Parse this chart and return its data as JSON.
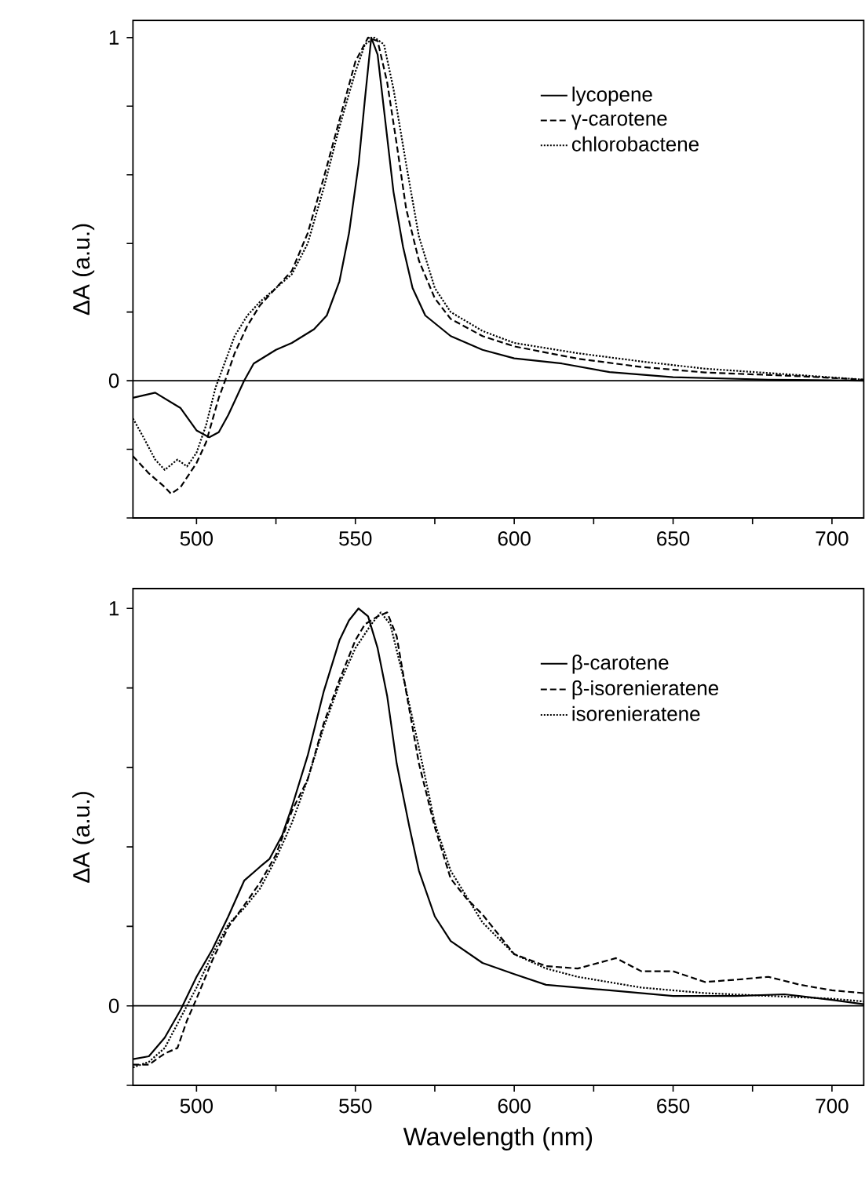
{
  "chart_data": [
    {
      "type": "line",
      "ylabel": "ΔA (a.u.)",
      "xlim": [
        480,
        710
      ],
      "ylim": [
        -0.4,
        1.05
      ],
      "xticks": [
        500,
        {
          "value": 525,
          "label": null
        },
        550,
        {
          "value": 575,
          "label": null
        },
        600,
        {
          "value": 625,
          "label": null
        },
        650,
        {
          "value": 675,
          "label": null
        },
        700
      ],
      "yticks": [
        {
          "value": -0.4,
          "label": null
        },
        {
          "value": -0.2,
          "label": null
        },
        0,
        {
          "value": 0.2,
          "label": null
        },
        {
          "value": 0.4,
          "label": null
        },
        {
          "value": 0.6,
          "label": null
        },
        {
          "value": 0.8,
          "label": null
        },
        1
      ],
      "legend": "top right",
      "ref_lines": [
        {
          "axis": "y",
          "value": 0,
          "color": "#000000",
          "line_style": "solid"
        }
      ],
      "series": [
        {
          "name": "lycopene",
          "color": "#000000",
          "line_style": "solid",
          "x": [
            480,
            487,
            495,
            500,
            504,
            507,
            510,
            515,
            518,
            525,
            530,
            537,
            541,
            545,
            548,
            551,
            553,
            555,
            557,
            559,
            562,
            565,
            568,
            572,
            580,
            590,
            600,
            615,
            630,
            650,
            680,
            710
          ],
          "values": [
            -0.05,
            -0.035,
            -0.08,
            -0.145,
            -0.165,
            -0.15,
            -0.1,
            0,
            0.05,
            0.09,
            0.11,
            0.15,
            0.19,
            0.29,
            0.43,
            0.63,
            0.82,
            1.0,
            0.95,
            0.79,
            0.55,
            0.39,
            0.27,
            0.19,
            0.13,
            0.09,
            0.065,
            0.05,
            0.025,
            0.01,
            0.003,
            0
          ]
        },
        {
          "name": "γ-carotene",
          "color": "#000000",
          "line_style": "dashed",
          "x": [
            480,
            485,
            490,
            492,
            495,
            500,
            503,
            507,
            509,
            512,
            516,
            520,
            525,
            530,
            535,
            540,
            545,
            550,
            554,
            557,
            560,
            563,
            566,
            570,
            575,
            580,
            590,
            600,
            620,
            640,
            660,
            690,
            710
          ],
          "values": [
            -0.22,
            -0.27,
            -0.31,
            -0.33,
            -0.31,
            -0.24,
            -0.18,
            -0.05,
            0,
            0.08,
            0.16,
            0.22,
            0.27,
            0.32,
            0.43,
            0.59,
            0.76,
            0.93,
            1.0,
            0.99,
            0.87,
            0.69,
            0.5,
            0.35,
            0.24,
            0.18,
            0.13,
            0.1,
            0.064,
            0.04,
            0.024,
            0.013,
            0.003
          ]
        },
        {
          "name": "chlorobactene",
          "color": "#000000",
          "line_style": "dotted",
          "x": [
            480,
            483,
            487,
            490,
            494,
            497,
            500,
            503,
            506,
            508,
            512,
            516,
            520,
            525,
            530,
            535,
            540,
            545,
            550,
            553,
            556,
            559,
            562,
            566,
            570,
            575,
            580,
            590,
            600,
            620,
            640,
            660,
            690,
            710
          ],
          "values": [
            -0.11,
            -0.16,
            -0.23,
            -0.26,
            -0.23,
            -0.25,
            -0.21,
            -0.13,
            -0.02,
            0.03,
            0.13,
            0.19,
            0.23,
            0.27,
            0.31,
            0.4,
            0.56,
            0.74,
            0.9,
            0.98,
            1.0,
            0.98,
            0.85,
            0.63,
            0.42,
            0.27,
            0.2,
            0.145,
            0.11,
            0.08,
            0.056,
            0.035,
            0.016,
            0.003
          ]
        }
      ]
    },
    {
      "type": "line",
      "xlabel": "Wavelength (nm)",
      "ylabel": "ΔA (a.u.)",
      "xlim": [
        480,
        710
      ],
      "ylim": [
        -0.2,
        1.05
      ],
      "xticks": [
        500,
        {
          "value": 525,
          "label": null
        },
        550,
        {
          "value": 575,
          "label": null
        },
        600,
        {
          "value": 625,
          "label": null
        },
        650,
        {
          "value": 675,
          "label": null
        },
        700
      ],
      "yticks": [
        {
          "value": -0.2,
          "label": null
        },
        0,
        {
          "value": 0.2,
          "label": null
        },
        {
          "value": 0.4,
          "label": null
        },
        {
          "value": 0.6,
          "label": null
        },
        {
          "value": 0.8,
          "label": null
        },
        1
      ],
      "legend": "top right",
      "ref_lines": [
        {
          "axis": "y",
          "value": 0,
          "color": "#000000",
          "line_style": "solid"
        }
      ],
      "series": [
        {
          "name": "β-carotene",
          "color": "#000000",
          "line_style": "solid",
          "x": [
            480,
            485,
            490,
            495,
            500,
            505,
            510,
            515,
            520,
            523,
            527,
            530,
            535,
            540,
            545,
            548,
            551,
            554,
            557,
            560,
            563,
            567,
            570,
            575,
            580,
            590,
            600,
            610,
            630,
            650,
            670,
            685,
            700,
            710
          ],
          "values": [
            -0.134,
            -0.127,
            -0.08,
            -0.01,
            0.073,
            0.142,
            0.225,
            0.315,
            0.35,
            0.37,
            0.43,
            0.5,
            0.63,
            0.79,
            0.92,
            0.97,
            1.0,
            0.98,
            0.9,
            0.78,
            0.61,
            0.45,
            0.34,
            0.225,
            0.163,
            0.108,
            0.08,
            0.053,
            0.039,
            0.025,
            0.025,
            0.029,
            0.015,
            0.004
          ]
        },
        {
          "name": "β-isorenieratene",
          "color": "#000000",
          "line_style": "dashed",
          "x": [
            480,
            485,
            490,
            494,
            497,
            500,
            505,
            510,
            515,
            520,
            525,
            530,
            535,
            540,
            545,
            550,
            553,
            557,
            560,
            563,
            566,
            570,
            575,
            580,
            585,
            590,
            595,
            600,
            610,
            620,
            632,
            640,
            650,
            660,
            670,
            680,
            690,
            700,
            710
          ],
          "values": [
            -0.148,
            -0.148,
            -0.12,
            -0.106,
            -0.037,
            0.018,
            0.115,
            0.198,
            0.253,
            0.31,
            0.38,
            0.49,
            0.57,
            0.71,
            0.82,
            0.92,
            0.96,
            0.98,
            0.99,
            0.93,
            0.79,
            0.61,
            0.45,
            0.32,
            0.27,
            0.23,
            0.18,
            0.13,
            0.1,
            0.094,
            0.12,
            0.087,
            0.087,
            0.06,
            0.066,
            0.073,
            0.053,
            0.039,
            0.032
          ]
        },
        {
          "name": "isorenieratene",
          "color": "#000000",
          "line_style": "dotted",
          "x": [
            480,
            485,
            490,
            495,
            500,
            505,
            510,
            515,
            520,
            525,
            530,
            535,
            540,
            545,
            550,
            555,
            558,
            561,
            565,
            570,
            575,
            580,
            590,
            600,
            610,
            620,
            640,
            660,
            680,
            700,
            710
          ],
          "values": [
            -0.155,
            -0.141,
            -0.106,
            -0.03,
            0.046,
            0.13,
            0.205,
            0.246,
            0.295,
            0.37,
            0.46,
            0.57,
            0.7,
            0.81,
            0.9,
            0.96,
            0.99,
            0.96,
            0.83,
            0.65,
            0.46,
            0.34,
            0.21,
            0.13,
            0.094,
            0.073,
            0.046,
            0.032,
            0.025,
            0.018,
            0.011
          ]
        }
      ]
    }
  ]
}
